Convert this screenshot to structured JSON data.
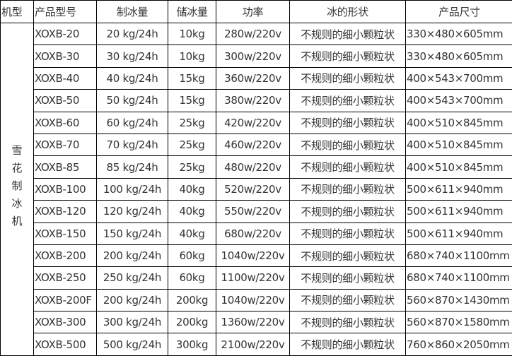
{
  "headers": [
    "机型",
    "产品型号",
    "制冰量",
    "储冰量",
    "功率",
    "冰的形状",
    "产品尺寸"
  ],
  "category": "雪花制冰机",
  "rows": [
    [
      "XOXB-20",
      "20 kg/24h",
      "10kg",
      "280w/220v",
      "不规则的细小颗粒状",
      "330×480×605mm"
    ],
    [
      "XOXB-30",
      "30 kg/24h",
      "10kg",
      "300w/220v",
      "不规则的细小颗粒状",
      "330×480×605mm"
    ],
    [
      "XOXB-40",
      "40 kg/24h",
      "15kg",
      "360w/220v",
      "不规则的细小颗粒状",
      "400×543×700mm"
    ],
    [
      "XOXB-50",
      "50 kg/24h",
      "15kg",
      "380w/220v",
      "不规则的细小颗粒状",
      "400×543×700mm"
    ],
    [
      "XOXB-60",
      "60 kg/24h",
      "25kg",
      "420w/220v",
      "不规则的细小颗粒状",
      "400×510×845mm"
    ],
    [
      "XOXB-70",
      "70 kg/24h",
      "25kg",
      "460w/220v",
      "不规则的细小颗粒状",
      "400×510×845mm"
    ],
    [
      "XOXB-85",
      "85 kg/24h",
      "25kg",
      "480w/220v",
      "不规则的细小颗粒状",
      "400×510×845mm"
    ],
    [
      "XOXB-100",
      "100 kg/24h",
      "40kg",
      "520w/220v",
      "不规则的细小颗粒状",
      "500×611×940mm"
    ],
    [
      "XOXB-120",
      "120 kg/24h",
      "40kg",
      "550w/220v",
      "不规则的细小颗粒状",
      "500×611×940mm"
    ],
    [
      "XOXB-150",
      "150 kg/24h",
      "40kg",
      "680w/220v",
      "不规则的细小颗粒状",
      "500×611×940mm"
    ],
    [
      "XOXB-200",
      "200 kg/24h",
      "60kg",
      "1040w/220v",
      "不规则的细小颗粒状",
      "680×740×1100mm"
    ],
    [
      "XOXB-250",
      "250 kg/24h",
      "60kg",
      "1100w/220v",
      "不规则的细小颗粒状",
      "680×740×1100mm"
    ],
    [
      "XOXB-200F",
      "200 kg/24h",
      "200kg",
      "1040w/220v",
      "不规则的细小颗粒状",
      "560×870×1430mm"
    ],
    [
      "XOXB-300",
      "300 kg/24h",
      "200kg",
      "1360w/220v",
      "不规则的细小颗粒状",
      "560×870×1580mm"
    ],
    [
      "XOXB-500",
      "500 kg/24h",
      "300kg",
      "2100w/220v",
      "不规则的细小颗粒状",
      "760×860×2050mm"
    ]
  ]
}
